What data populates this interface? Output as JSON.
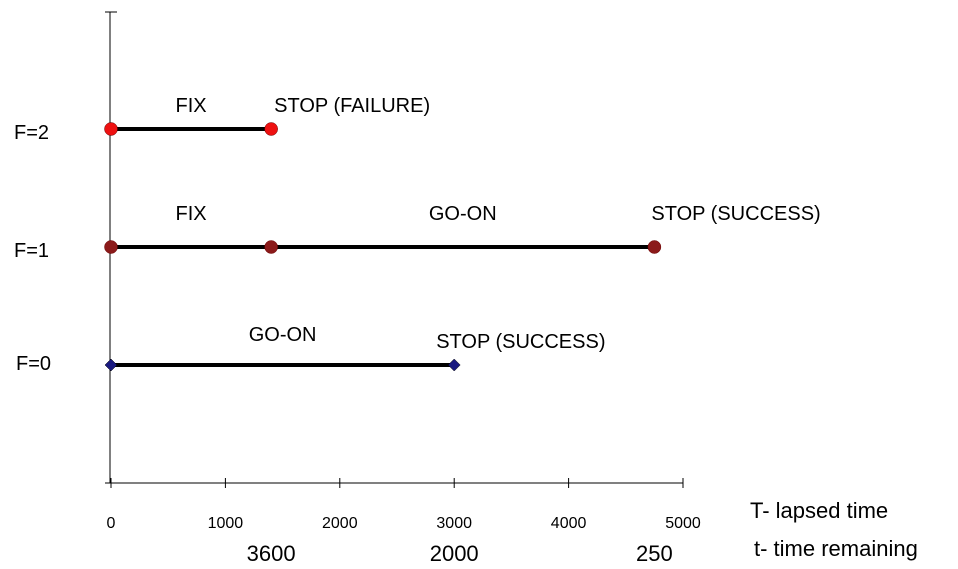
{
  "chart_data": {
    "type": "line",
    "x_axis_label": "T- lapsed time",
    "secondary_axis_label": "t- time remaining",
    "xlim": [
      0,
      5000
    ],
    "x_ticks": [
      0,
      1000,
      2000,
      3000,
      4000,
      5000
    ],
    "secondary_ticks": [
      {
        "T": 1400,
        "label": "3600"
      },
      {
        "T": 3000,
        "label": "2000"
      },
      {
        "T": 4750,
        "label": "250"
      }
    ],
    "grid": false,
    "rows": [
      {
        "label": "F=2",
        "marker": "circle",
        "color": "#ee1111",
        "points": [
          0,
          1400
        ],
        "segments": [
          {
            "label": "FIX",
            "x_start": 0,
            "x_end": 1400
          }
        ],
        "endpoint_label": "STOP (FAILURE)"
      },
      {
        "label": "F=1",
        "marker": "circle",
        "color": "#8b1a1a",
        "points": [
          0,
          1400,
          4750
        ],
        "segments": [
          {
            "label": "FIX",
            "x_start": 0,
            "x_end": 1400
          },
          {
            "label": "GO-ON",
            "x_start": 1400,
            "x_end": 4750
          }
        ],
        "endpoint_label": "STOP (SUCCESS)"
      },
      {
        "label": "F=0",
        "marker": "diamond",
        "color": "#1a1a80",
        "points": [
          0,
          3000
        ],
        "segments": [
          {
            "label": "GO-ON",
            "x_start": 0,
            "x_end": 3000
          }
        ],
        "endpoint_label": "STOP (SUCCESS)"
      }
    ]
  }
}
